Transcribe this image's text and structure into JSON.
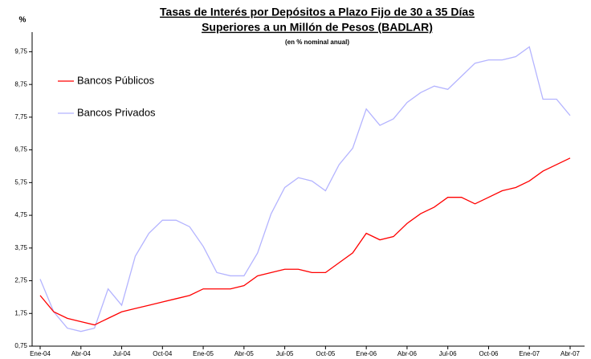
{
  "chart_data": {
    "type": "line",
    "title": [
      "Tasas de Interés por Depósitos a Plazo Fijo de 30 a 35 Días",
      "Superiores a un Millón de Pesos (BADLAR)"
    ],
    "subtitle": "(en % nominal anual)",
    "y_label": "%",
    "categories": [
      "Ene-04",
      null,
      null,
      "Abr-04",
      null,
      null,
      "Jul-04",
      null,
      null,
      "Oct-04",
      null,
      null,
      "Ene-05",
      null,
      null,
      "Abr-05",
      null,
      null,
      "Jul-05",
      null,
      null,
      "Oct-05",
      null,
      null,
      "Ene-06",
      null,
      null,
      "Abr-06",
      null,
      null,
      "Jul-06",
      null,
      null,
      "Oct-06",
      null,
      null,
      "Ene-07",
      null,
      null,
      "Abr-07"
    ],
    "series": [
      {
        "name": "Bancos Públicos",
        "color": "#ff0000",
        "values": [
          2.3,
          1.8,
          1.6,
          1.5,
          1.4,
          1.6,
          1.8,
          1.9,
          2.0,
          2.1,
          2.2,
          2.3,
          2.5,
          2.5,
          2.5,
          2.6,
          2.9,
          3.0,
          3.1,
          3.1,
          3.0,
          3.0,
          3.3,
          3.6,
          4.2,
          4.0,
          4.1,
          4.5,
          4.8,
          5.0,
          5.3,
          5.3,
          5.1,
          5.3,
          5.5,
          5.6,
          5.8,
          6.1,
          6.3,
          6.5
        ]
      },
      {
        "name": "Bancos Privados",
        "color": "#b4b4ff",
        "values": [
          2.8,
          1.8,
          1.3,
          1.2,
          1.3,
          2.5,
          2.0,
          3.5,
          4.2,
          4.6,
          4.6,
          4.4,
          3.8,
          3.0,
          2.9,
          2.9,
          3.6,
          4.8,
          5.6,
          5.9,
          5.8,
          5.5,
          6.3,
          6.8,
          8.0,
          7.5,
          7.7,
          8.2,
          8.5,
          8.7,
          8.6,
          9.0,
          9.4,
          9.5,
          9.5,
          9.6,
          9.9,
          8.3,
          8.3,
          7.8
        ]
      }
    ],
    "ylim": [
      0.75,
      10.35
    ],
    "yticks": [
      {
        "value": 0.75,
        "label": "0,75"
      },
      {
        "value": 1.75,
        "label": "1,75"
      },
      {
        "value": 2.75,
        "label": "2,75"
      },
      {
        "value": 3.75,
        "label": "3,75"
      },
      {
        "value": 4.75,
        "label": "4,75"
      },
      {
        "value": 5.75,
        "label": "5,75"
      },
      {
        "value": 6.75,
        "label": "6,75"
      },
      {
        "value": 7.75,
        "label": "7,75"
      },
      {
        "value": 8.75,
        "label": "8,75"
      },
      {
        "value": 9.75,
        "label": "9,75"
      }
    ],
    "grid": false,
    "legend": "upper left"
  }
}
